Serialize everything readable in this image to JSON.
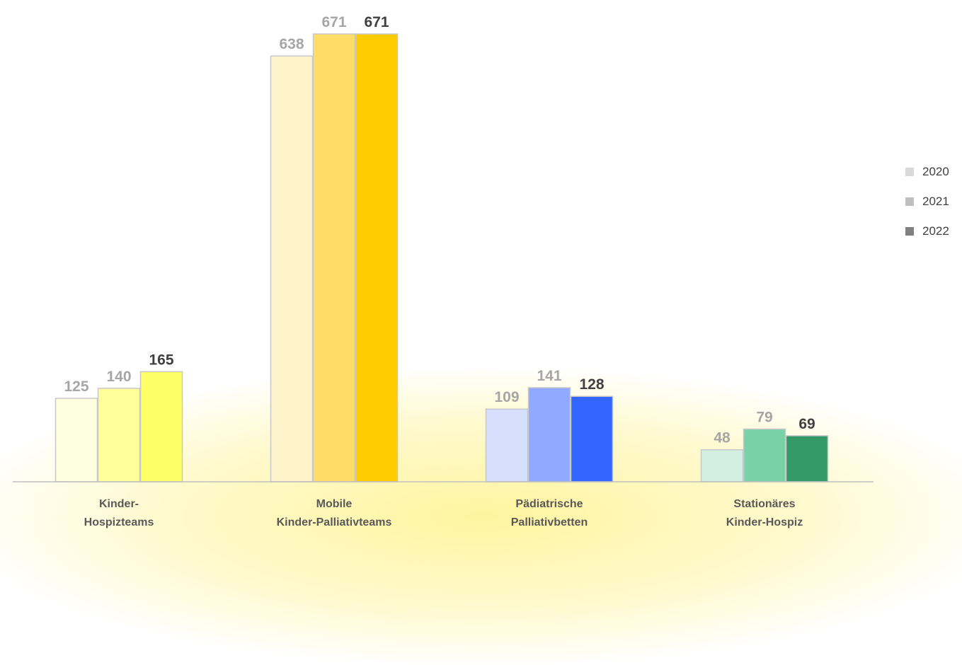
{
  "chart_data": {
    "type": "bar",
    "categories": [
      [
        "Kinder-",
        "Hospizteams"
      ],
      [
        "Mobile",
        "Kinder-Palliativteams"
      ],
      [
        "Pädiatrische",
        "Palliativbetten"
      ],
      [
        "Stationäres",
        "Kinder-Hospiz"
      ]
    ],
    "series": [
      {
        "name": "2020",
        "values": [
          125,
          638,
          109,
          48
        ],
        "legend_color": "#d9d9d9",
        "label_color": "#a6a6a6",
        "colors": [
          "#fefee0",
          "#fff3cc",
          "#d6e0fe",
          "#d2efe2"
        ]
      },
      {
        "name": "2021",
        "values": [
          140,
          671,
          141,
          79
        ],
        "legend_color": "#bfbfbf",
        "label_color": "#a6a6a6",
        "colors": [
          "#ffff99",
          "#ffdd66",
          "#8faaff",
          "#78d2a6"
        ]
      },
      {
        "name": "2022",
        "values": [
          165,
          671,
          128,
          69
        ],
        "legend_color": "#808080",
        "label_color": "#404040",
        "colors": [
          "#ffff66",
          "#ffcc00",
          "#3366ff",
          "#339966"
        ]
      }
    ],
    "ylim": [
      0,
      671
    ],
    "grid": false,
    "legend_position": "right"
  }
}
